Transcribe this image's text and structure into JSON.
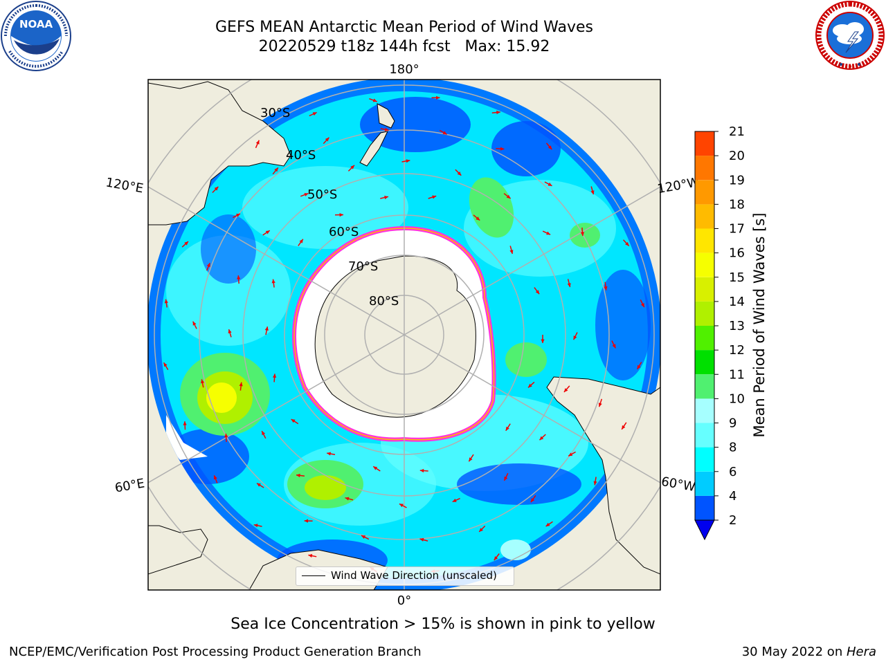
{
  "header": {
    "title_line1": "GEFS MEAN Antarctic Mean Period of Wind Waves",
    "title_line2": "20220529 t18z 144h fcst   Max: 15.92"
  },
  "logos": {
    "noaa": {
      "text": "NOAA",
      "ring_text": "NATIONAL OCEANIC AND ATMOSPHERIC ADMINISTRATION · U.S. DEPARTMENT OF COMMERCE"
    },
    "nws": {
      "ring_text": "NATIONAL WEATHER SERVICE"
    }
  },
  "map": {
    "projection": "south-polar-stereographic",
    "longitude_labels": {
      "top": "180°",
      "bottom": "0°",
      "upper_left": "120°E",
      "upper_right": "120°W",
      "lower_left": "60°E",
      "lower_right": "60°W"
    },
    "latitude_labels": [
      "30°S",
      "40°S",
      "50°S",
      "60°S",
      "70°S",
      "80°S"
    ],
    "legend_text": "Wind Wave Direction (unscaled)"
  },
  "colorbar": {
    "label": "Mean Period of Wind Waves [s]",
    "ticks": [
      "2",
      "4",
      "6",
      "8",
      "9",
      "10",
      "11",
      "12",
      "13",
      "14",
      "15",
      "16",
      "17",
      "18",
      "19",
      "20",
      "21"
    ],
    "colors": [
      "#0054ff",
      "#00ccff",
      "#00ffff",
      "#66ffff",
      "#a6ffff",
      "#50f070",
      "#00e000",
      "#50f000",
      "#b0f000",
      "#d8f000",
      "#f6ff00",
      "#ffe600",
      "#ffbb00",
      "#ff9900",
      "#ff7700",
      "#ff4400",
      "#ff0000"
    ],
    "extend_color": "#0000ee"
  },
  "footer": {
    "ice_note": "Sea Ice Concentration > 15% is shown in pink to yellow",
    "credit": "NCEP/EMC/Verification Post Processing Product Generation Branch",
    "date_prefix": "30 May 2022 on ",
    "date_machine": "Hera"
  },
  "colors": {
    "land": "#efedde",
    "ocean_base": "#00e6ff",
    "ice": "#ffffff",
    "ice_edge": "#ff33dd",
    "arrow": "#ee0000",
    "grid": "#b0b0b0"
  }
}
